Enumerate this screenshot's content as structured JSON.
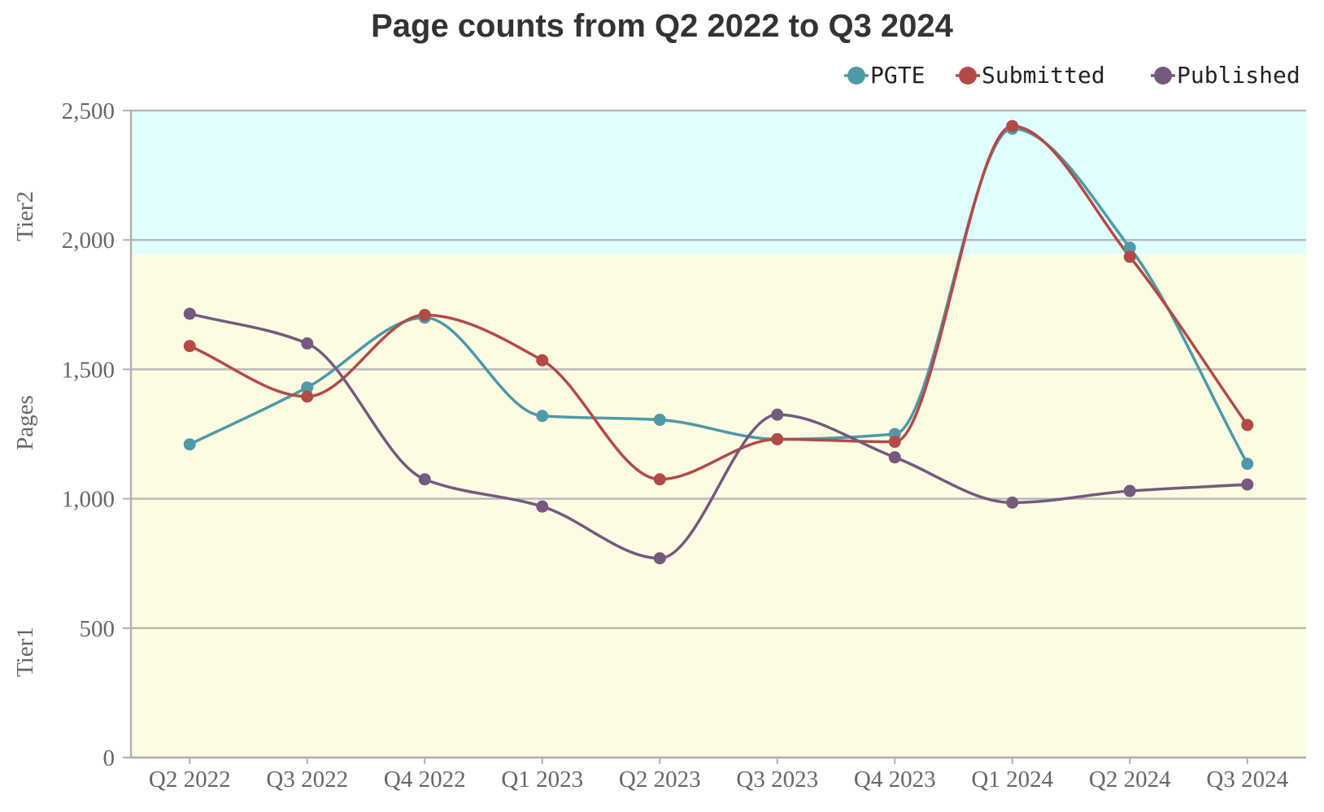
{
  "chart_data": {
    "type": "line",
    "title": "Page counts from Q2 2022 to Q3 2024",
    "xlabel": "",
    "ylabel": "Pages",
    "ylim": [
      0,
      2500
    ],
    "yticks": [
      0,
      500,
      1000,
      1500,
      2000,
      2500
    ],
    "ytick_labels": [
      "0",
      "500",
      "1,000",
      "1,500",
      "2,000",
      "2,500"
    ],
    "categories": [
      "Q2 2022",
      "Q3 2022",
      "Q4 2022",
      "Q1 2023",
      "Q2 2023",
      "Q3 2023",
      "Q4 2023",
      "Q1 2024",
      "Q2 2024",
      "Q3 2024"
    ],
    "series": [
      {
        "name": "PGTE",
        "color": "#4e9aa8",
        "values": [
          1210,
          1430,
          1700,
          1320,
          1305,
          1230,
          1250,
          2430,
          1970,
          1135
        ]
      },
      {
        "name": "Submitted",
        "color": "#b34a47",
        "values": [
          1590,
          1395,
          1710,
          1535,
          1075,
          1230,
          1220,
          2440,
          1935,
          1285
        ]
      },
      {
        "name": "Published",
        "color": "#755a7e",
        "values": [
          1715,
          1600,
          1075,
          970,
          770,
          1325,
          1160,
          985,
          1030,
          1055
        ]
      }
    ],
    "bands": [
      {
        "name": "Tier1",
        "from": 0,
        "to": 1945,
        "color": "#fdfce3"
      },
      {
        "name": "Tier2",
        "from": 1945,
        "to": 2500,
        "color": "#e2fdfe"
      }
    ],
    "grid": true,
    "legend_position": "top-right"
  }
}
